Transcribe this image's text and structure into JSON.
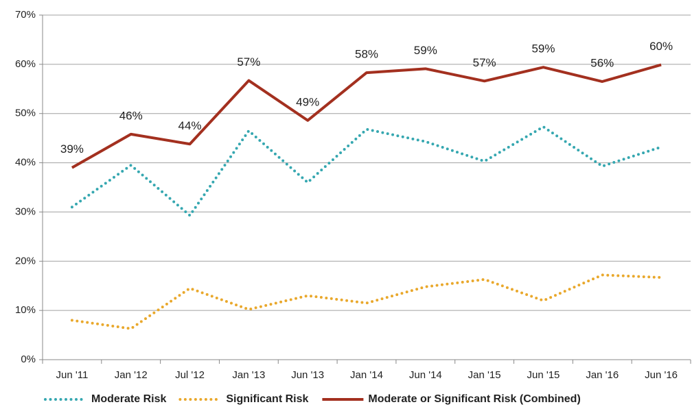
{
  "chart_data": {
    "type": "line",
    "categories": [
      "Jun '11",
      "Jan '12",
      "Jul '12",
      "Jan '13",
      "Jun '13",
      "Jan '14",
      "Jun '14",
      "Jan '15",
      "Jun '15",
      "Jan '16",
      "Jun '16"
    ],
    "series": [
      {
        "name": "Moderate Risk",
        "color": "#35a7b0",
        "line_style": "dotted",
        "values": [
          31,
          39.5,
          29.3,
          46.5,
          36,
          46.8,
          44.3,
          40.3,
          47.3,
          39.3,
          43.2
        ]
      },
      {
        "name": "Significant Risk",
        "color": "#e9a82c",
        "line_style": "dotted",
        "values": [
          8,
          6.3,
          14.5,
          10.2,
          13,
          11.5,
          14.8,
          16.3,
          12,
          17.2,
          16.7
        ]
      },
      {
        "name": "Moderate or Significant Risk (Combined)",
        "color": "#a3301f",
        "line_style": "solid",
        "values": [
          39,
          45.8,
          43.8,
          56.7,
          48.6,
          58.3,
          59.1,
          56.6,
          59.4,
          56.5,
          59.9
        ],
        "value_labels": [
          "39%",
          "46%",
          "44%",
          "57%",
          "49%",
          "58%",
          "59%",
          "57%",
          "59%",
          "56%",
          "60%"
        ]
      }
    ],
    "ylim": [
      0,
      70
    ],
    "yticks": [
      {
        "value": 0,
        "label": "0%"
      },
      {
        "value": 10,
        "label": "10%"
      },
      {
        "value": 20,
        "label": "20%"
      },
      {
        "value": 30,
        "label": "30%"
      },
      {
        "value": 40,
        "label": "40%"
      },
      {
        "value": 50,
        "label": "50%"
      },
      {
        "value": 60,
        "label": "60%"
      },
      {
        "value": 70,
        "label": "70%"
      }
    ],
    "grid": true,
    "legend": "bottom"
  }
}
